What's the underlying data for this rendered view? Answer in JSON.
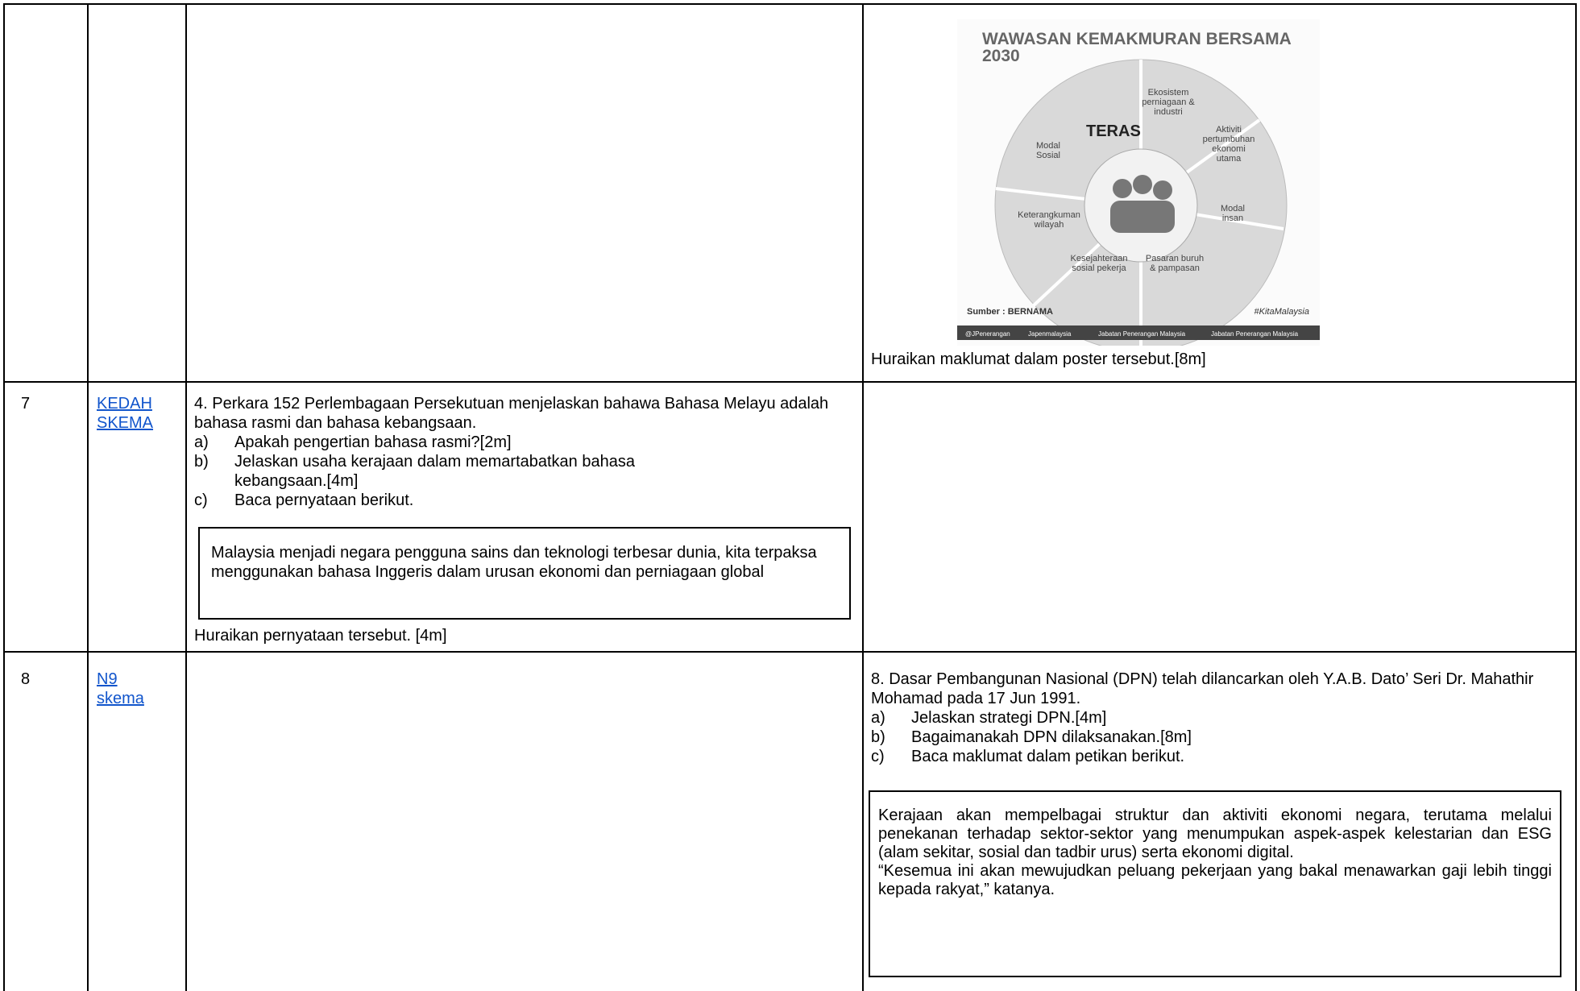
{
  "table": {
    "rows": [
      {
        "poster": {
          "title": "WAWASAN KEMAKMURAN BERSAMA",
          "year": "2030",
          "center": "TERAS",
          "segments": [
            [
              "Ekosistem",
              "perniagaan &",
              "industri"
            ],
            [
              "Aktiviti",
              "pertumbuhan",
              "ekonomi",
              "utama"
            ],
            [
              "Modal",
              "insan"
            ],
            [
              "Pasaran buruh",
              "& pampasan"
            ],
            [
              "Kesejahteraan",
              "sosial pekerja"
            ],
            [
              "Keterangkuman",
              "wilayah"
            ],
            [
              "Modal",
              "Sosial"
            ]
          ],
          "source": "Sumber : BERNAMA",
          "hashtag": "#KitaMalaysia",
          "footer": [
            "@JPenerangan",
            "Japenmalaysia",
            "Jabatan Penerangan Malaysia",
            "Jabatan Penerangan Malaysia"
          ]
        },
        "question": "Huraikan maklumat dalam poster tersebut.[8m]"
      },
      {
        "number": "7",
        "link": "KEDAH SKEMA",
        "question": {
          "intro": "4. Perkara 152 Perlembagaan Persekutuan menjelaskan bahawa Bahasa Melayu adalah bahasa rasmi dan bahasa kebangsaan.",
          "items": [
            {
              "marker": "a)",
              "text": "Apakah pengertian bahasa rasmi?[2m]"
            },
            {
              "marker": "b)",
              "text": "Jelaskan usaha kerajaan dalam memartabatkan bahasa kebangsaan.[4m]"
            },
            {
              "marker": "c)",
              "text": "Baca pernyataan berikut."
            }
          ],
          "quote": "Malaysia menjadi negara pengguna sains dan teknologi terbesar dunia, kita terpaksa menggunakan bahasa Inggeris dalam urusan ekonomi dan perniagaan global",
          "closing": "Huraikan pernyataan tersebut. [4m]"
        }
      },
      {
        "number": "8",
        "link": "N9 skema",
        "question": {
          "intro": "8. Dasar Pembangunan Nasional (DPN) telah dilancarkan oleh Y.A.B. Dato’ Seri Dr. Mahathir Mohamad  pada 17 Jun 1991.",
          "items": [
            {
              "marker": "a)",
              "text": "Jelaskan strategi DPN.[4m]"
            },
            {
              "marker": "b)",
              "text": "Bagaimanakah DPN dilaksanakan.[8m]"
            },
            {
              "marker": "c)",
              "text": "Baca maklumat dalam petikan berikut."
            }
          ],
          "quote": [
            "Kerajaan akan mempelbagai struktur dan aktiviti ekonomi negara, terutama melalui penekanan terhadap sektor-sektor yang menumpukan aspek-aspek kelestarian dan ESG (alam sekitar, sosial dan tadbir urus) serta ekonomi digital.",
            "“Kesemua ini akan mewujudkan peluang pekerjaan yang bakal menawarkan gaji lebih tinggi kepada rakyat,” katanya."
          ]
        }
      }
    ]
  }
}
